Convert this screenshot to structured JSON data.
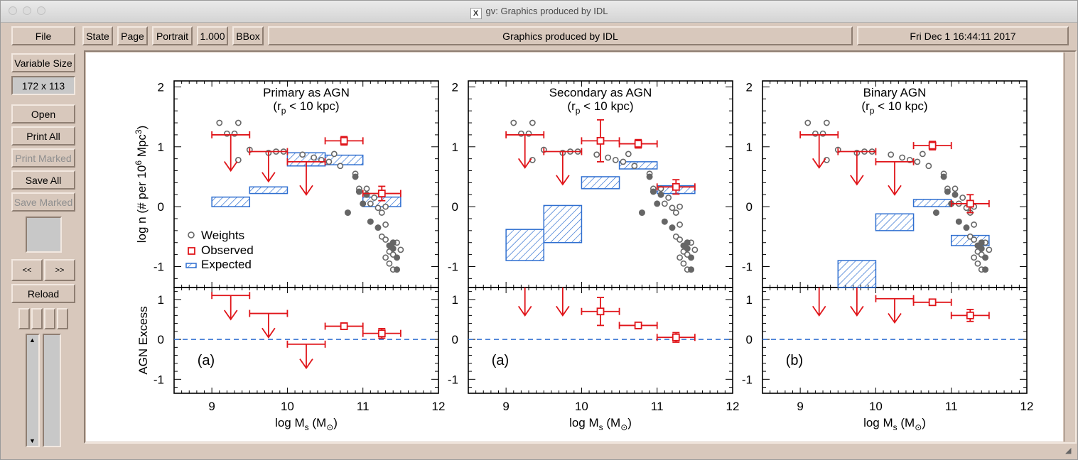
{
  "window": {
    "title": "gv: Graphics produced by IDL",
    "x_logo": "X"
  },
  "toolbar": {
    "file": "File",
    "state": "State",
    "page": "Page",
    "orientation": "Portrait",
    "magnification": "1.000",
    "bbox": "BBox",
    "document_title": "Graphics produced by IDL",
    "date": "Fri Dec  1 16:44:11 2017"
  },
  "sidebar": {
    "size_mode": "Variable Size",
    "size_value": "172 x 113",
    "open": "Open",
    "print_all": "Print All",
    "print_marked": "Print Marked",
    "save_all": "Save All",
    "save_marked": "Save Marked",
    "prev": "<<",
    "next": ">>",
    "reload": "Reload"
  },
  "colors": {
    "observed": "#e0151a",
    "expected": "#2f6fd0",
    "weights": "#666666",
    "dashed": "#2f6fd0"
  },
  "chart_data": [
    {
      "type": "scatter",
      "title": "Primary as AGN",
      "subtitle": "(r_p < 10 kpc)",
      "ylabel_top": "log n (# per 10^6 Mpc^3)",
      "ylabel_bottom": "AGN Excess",
      "xlabel": "log M_s (M_sun)",
      "panel_label": "(a)",
      "xlim": [
        8.5,
        12
      ],
      "ylim_top": [
        -1.35,
        2.1
      ],
      "ylim_bottom": [
        -1.35,
        1.3
      ],
      "xticks": [
        "9",
        "10",
        "11",
        "12"
      ],
      "yticks_top": [
        "2",
        "1",
        "0",
        "-1"
      ],
      "yticks_bottom": [
        "1",
        "0",
        "-1"
      ],
      "legend": [
        "Weights",
        "Observed",
        "Expected"
      ],
      "weights_open": [
        [
          9.1,
          1.4
        ],
        [
          9.2,
          1.22
        ],
        [
          9.3,
          1.22
        ],
        [
          9.35,
          1.4
        ],
        [
          9.35,
          0.78
        ],
        [
          9.5,
          0.95
        ],
        [
          9.75,
          0.9
        ],
        [
          9.85,
          0.92
        ],
        [
          9.95,
          0.92
        ],
        [
          10.2,
          0.87
        ],
        [
          10.35,
          0.82
        ],
        [
          10.45,
          0.78
        ],
        [
          10.55,
          0.75
        ],
        [
          10.62,
          0.88
        ],
        [
          10.7,
          0.68
        ],
        [
          10.9,
          0.55
        ],
        [
          10.95,
          0.3
        ],
        [
          11.05,
          0.3
        ],
        [
          11.1,
          0.05
        ],
        [
          11.15,
          0.15
        ],
        [
          11.2,
          -0.02
        ],
        [
          11.25,
          -0.1
        ],
        [
          11.3,
          0.0
        ],
        [
          11.3,
          -0.3
        ],
        [
          11.25,
          -0.5
        ],
        [
          11.3,
          -0.55
        ],
        [
          11.35,
          -0.75
        ],
        [
          11.4,
          -0.8
        ],
        [
          11.45,
          -0.6
        ],
        [
          11.5,
          -0.72
        ],
        [
          11.35,
          -0.95
        ],
        [
          11.3,
          -0.85
        ],
        [
          11.4,
          -1.05
        ]
      ],
      "weights_filled": [
        [
          10.8,
          -0.1
        ],
        [
          10.9,
          0.5
        ],
        [
          10.95,
          0.25
        ],
        [
          11.0,
          0.05
        ],
        [
          11.05,
          0.2
        ],
        [
          11.1,
          -0.25
        ],
        [
          11.2,
          -0.35
        ],
        [
          11.35,
          -0.65
        ],
        [
          11.4,
          -0.7
        ],
        [
          11.45,
          -0.85
        ],
        [
          11.45,
          -1.05
        ],
        [
          11.4,
          -0.6
        ]
      ],
      "expected": [
        [
          9.0,
          9.5,
          0.0,
          0.16
        ],
        [
          9.5,
          10.0,
          0.22,
          0.33
        ],
        [
          10.0,
          10.5,
          0.68,
          0.9
        ],
        [
          10.5,
          11.0,
          0.7,
          0.86
        ],
        [
          11.0,
          11.5,
          0.0,
          0.16
        ]
      ],
      "observed_top": [
        {
          "xl": 9.0,
          "xh": 9.5,
          "x": 9.25,
          "y": 1.2,
          "upper": true,
          "arrow": 0.6
        },
        {
          "xl": 9.5,
          "xh": 10.0,
          "x": 9.75,
          "y": 0.92,
          "upper": true,
          "arrow": 0.5
        },
        {
          "xl": 10.0,
          "xh": 10.5,
          "x": 10.25,
          "y": 0.75,
          "upper": true,
          "arrow": 0.55
        },
        {
          "xl": 10.5,
          "xh": 11.0,
          "x": 10.75,
          "y": 1.1,
          "yerr": 0.07,
          "upper": false
        },
        {
          "xl": 11.0,
          "xh": 11.5,
          "x": 11.25,
          "y": 0.22,
          "yerr": 0.12,
          "upper": false
        }
      ],
      "excess": [
        {
          "xl": 9.0,
          "xh": 9.5,
          "x": 9.25,
          "y": 1.1,
          "upper": true,
          "arrow": 0.6
        },
        {
          "xl": 9.5,
          "xh": 10.0,
          "x": 9.75,
          "y": 0.65,
          "upper": true,
          "arrow": 0.6
        },
        {
          "xl": 10.0,
          "xh": 10.5,
          "x": 10.25,
          "y": -0.12,
          "upper": true,
          "arrow": 0.6
        },
        {
          "xl": 10.5,
          "xh": 11.0,
          "x": 10.75,
          "y": 0.33,
          "yerr": 0.08,
          "upper": false
        },
        {
          "xl": 11.0,
          "xh": 11.5,
          "x": 11.25,
          "y": 0.15,
          "yerr": 0.12,
          "upper": false
        }
      ]
    },
    {
      "type": "scatter",
      "title": "Secondary as AGN",
      "subtitle": "(r_p < 10 kpc)",
      "ylabel_top": "",
      "ylabel_bottom": "",
      "xlabel": "log M_s (M_sun)",
      "panel_label": "(a)",
      "xlim": [
        8.5,
        12
      ],
      "ylim_top": [
        -1.35,
        2.1
      ],
      "ylim_bottom": [
        -1.35,
        1.3
      ],
      "xticks": [
        "9",
        "10",
        "11",
        "12"
      ],
      "yticks_top": [
        "2",
        "1",
        "0",
        "-1"
      ],
      "yticks_bottom": [
        "1",
        "0",
        "-1"
      ],
      "legend": [],
      "weights_open": [
        [
          9.1,
          1.4
        ],
        [
          9.2,
          1.22
        ],
        [
          9.3,
          1.22
        ],
        [
          9.35,
          1.4
        ],
        [
          9.35,
          0.78
        ],
        [
          9.5,
          0.95
        ],
        [
          9.75,
          0.9
        ],
        [
          9.85,
          0.92
        ],
        [
          9.95,
          0.92
        ],
        [
          10.2,
          0.87
        ],
        [
          10.35,
          0.82
        ],
        [
          10.45,
          0.78
        ],
        [
          10.55,
          0.75
        ],
        [
          10.62,
          0.88
        ],
        [
          10.7,
          0.68
        ],
        [
          10.9,
          0.55
        ],
        [
          10.95,
          0.3
        ],
        [
          11.05,
          0.3
        ],
        [
          11.1,
          0.05
        ],
        [
          11.15,
          0.15
        ],
        [
          11.2,
          -0.02
        ],
        [
          11.25,
          -0.1
        ],
        [
          11.3,
          0.0
        ],
        [
          11.3,
          -0.3
        ],
        [
          11.25,
          -0.5
        ],
        [
          11.3,
          -0.55
        ],
        [
          11.35,
          -0.75
        ],
        [
          11.4,
          -0.8
        ],
        [
          11.45,
          -0.6
        ],
        [
          11.5,
          -0.72
        ],
        [
          11.35,
          -0.95
        ],
        [
          11.3,
          -0.85
        ],
        [
          11.4,
          -1.05
        ]
      ],
      "weights_filled": [
        [
          10.8,
          -0.1
        ],
        [
          10.9,
          0.5
        ],
        [
          10.95,
          0.25
        ],
        [
          11.0,
          0.05
        ],
        [
          11.05,
          0.2
        ],
        [
          11.1,
          -0.25
        ],
        [
          11.2,
          -0.35
        ],
        [
          11.35,
          -0.65
        ],
        [
          11.4,
          -0.7
        ],
        [
          11.45,
          -0.85
        ],
        [
          11.45,
          -1.05
        ],
        [
          11.4,
          -0.6
        ]
      ],
      "expected": [
        [
          9.0,
          9.5,
          -0.9,
          -0.38
        ],
        [
          9.5,
          10.0,
          -0.6,
          0.02
        ],
        [
          10.0,
          10.5,
          0.3,
          0.5
        ],
        [
          10.5,
          11.0,
          0.63,
          0.75
        ],
        [
          11.0,
          11.5,
          0.22,
          0.35
        ]
      ],
      "observed_top": [
        {
          "xl": 9.0,
          "xh": 9.5,
          "x": 9.25,
          "y": 1.2,
          "upper": true,
          "arrow": 0.55
        },
        {
          "xl": 9.5,
          "xh": 10.0,
          "x": 9.75,
          "y": 0.92,
          "upper": true,
          "arrow": 0.55
        },
        {
          "xl": 10.0,
          "xh": 10.5,
          "x": 10.25,
          "y": 1.1,
          "yerr": 0.35,
          "upper": false
        },
        {
          "xl": 10.5,
          "xh": 11.0,
          "x": 10.75,
          "y": 1.05,
          "yerr": 0.07,
          "upper": false
        },
        {
          "xl": 11.0,
          "xh": 11.5,
          "x": 11.25,
          "y": 0.33,
          "yerr": 0.12,
          "upper": false
        }
      ],
      "excess": [
        {
          "xl": 9.25,
          "xh": 9.25,
          "x": 9.25,
          "y": 1.3,
          "upper": true,
          "arrow": 0.7
        },
        {
          "xl": 9.75,
          "xh": 9.75,
          "x": 9.75,
          "y": 1.3,
          "upper": true,
          "arrow": 0.7
        },
        {
          "xl": 10.0,
          "xh": 10.5,
          "x": 10.25,
          "y": 0.7,
          "yerr": 0.35,
          "upper": false
        },
        {
          "xl": 10.5,
          "xh": 11.0,
          "x": 10.75,
          "y": 0.35,
          "yerr": 0.08,
          "upper": false
        },
        {
          "xl": 11.0,
          "xh": 11.5,
          "x": 11.25,
          "y": 0.05,
          "yerr": 0.12,
          "upper": false
        }
      ]
    },
    {
      "type": "scatter",
      "title": "Binary AGN",
      "subtitle": "(r_p < 10 kpc)",
      "ylabel_top": "",
      "ylabel_bottom": "",
      "xlabel": "log M_s (M_sun)",
      "panel_label": "(b)",
      "xlim": [
        8.5,
        12
      ],
      "ylim_top": [
        -1.35,
        2.1
      ],
      "ylim_bottom": [
        -1.35,
        1.3
      ],
      "xticks": [
        "9",
        "10",
        "11",
        "12"
      ],
      "yticks_top": [
        "2",
        "1",
        "0",
        "-1"
      ],
      "yticks_bottom": [
        "1",
        "0",
        "-1"
      ],
      "legend": [],
      "weights_open": [
        [
          9.1,
          1.4
        ],
        [
          9.2,
          1.22
        ],
        [
          9.3,
          1.22
        ],
        [
          9.35,
          1.4
        ],
        [
          9.35,
          0.78
        ],
        [
          9.5,
          0.95
        ],
        [
          9.75,
          0.9
        ],
        [
          9.85,
          0.92
        ],
        [
          9.95,
          0.92
        ],
        [
          10.2,
          0.87
        ],
        [
          10.35,
          0.82
        ],
        [
          10.45,
          0.78
        ],
        [
          10.55,
          0.75
        ],
        [
          10.62,
          0.88
        ],
        [
          10.7,
          0.68
        ],
        [
          10.9,
          0.55
        ],
        [
          10.95,
          0.3
        ],
        [
          11.05,
          0.3
        ],
        [
          11.1,
          0.05
        ],
        [
          11.15,
          0.15
        ],
        [
          11.2,
          -0.02
        ],
        [
          11.25,
          -0.1
        ],
        [
          11.3,
          0.0
        ],
        [
          11.3,
          -0.3
        ],
        [
          11.25,
          -0.5
        ],
        [
          11.3,
          -0.55
        ],
        [
          11.35,
          -0.75
        ],
        [
          11.4,
          -0.8
        ],
        [
          11.45,
          -0.6
        ],
        [
          11.5,
          -0.72
        ],
        [
          11.35,
          -0.95
        ],
        [
          11.3,
          -0.85
        ],
        [
          11.4,
          -1.05
        ]
      ],
      "weights_filled": [
        [
          10.8,
          -0.1
        ],
        [
          10.9,
          0.5
        ],
        [
          10.95,
          0.25
        ],
        [
          11.0,
          0.05
        ],
        [
          11.05,
          0.2
        ],
        [
          11.1,
          -0.25
        ],
        [
          11.2,
          -0.35
        ],
        [
          11.35,
          -0.65
        ],
        [
          11.4,
          -0.7
        ],
        [
          11.45,
          -0.85
        ],
        [
          11.45,
          -1.05
        ],
        [
          11.4,
          -0.6
        ]
      ],
      "expected": [
        [
          9.5,
          10.0,
          -1.35,
          -0.9
        ],
        [
          10.0,
          10.5,
          -0.4,
          -0.12
        ],
        [
          10.5,
          11.0,
          0.0,
          0.12
        ],
        [
          11.0,
          11.5,
          -0.65,
          -0.48
        ]
      ],
      "observed_top": [
        {
          "xl": 9.0,
          "xh": 9.5,
          "x": 9.25,
          "y": 1.2,
          "upper": true,
          "arrow": 0.55
        },
        {
          "xl": 9.5,
          "xh": 10.0,
          "x": 9.75,
          "y": 0.92,
          "upper": true,
          "arrow": 0.55
        },
        {
          "xl": 10.0,
          "xh": 10.5,
          "x": 10.25,
          "y": 0.75,
          "upper": true,
          "arrow": 0.55
        },
        {
          "xl": 10.5,
          "xh": 11.0,
          "x": 10.75,
          "y": 1.02,
          "yerr": 0.07,
          "upper": false
        },
        {
          "xl": 11.0,
          "xh": 11.5,
          "x": 11.25,
          "y": 0.05,
          "yerr": 0.15,
          "upper": false
        }
      ],
      "excess": [
        {
          "xl": 9.25,
          "xh": 9.25,
          "x": 9.25,
          "y": 1.3,
          "upper": true,
          "arrow": 0.7
        },
        {
          "xl": 9.75,
          "xh": 9.75,
          "x": 9.75,
          "y": 1.3,
          "upper": true,
          "arrow": 0.7
        },
        {
          "xl": 10.0,
          "xh": 10.5,
          "x": 10.25,
          "y": 1.02,
          "upper": true,
          "arrow": 0.6
        },
        {
          "xl": 10.5,
          "xh": 11.0,
          "x": 10.75,
          "y": 0.93,
          "yerr": 0.07,
          "upper": false
        },
        {
          "xl": 11.0,
          "xh": 11.5,
          "x": 11.25,
          "y": 0.6,
          "yerr": 0.15,
          "upper": false
        }
      ]
    }
  ]
}
